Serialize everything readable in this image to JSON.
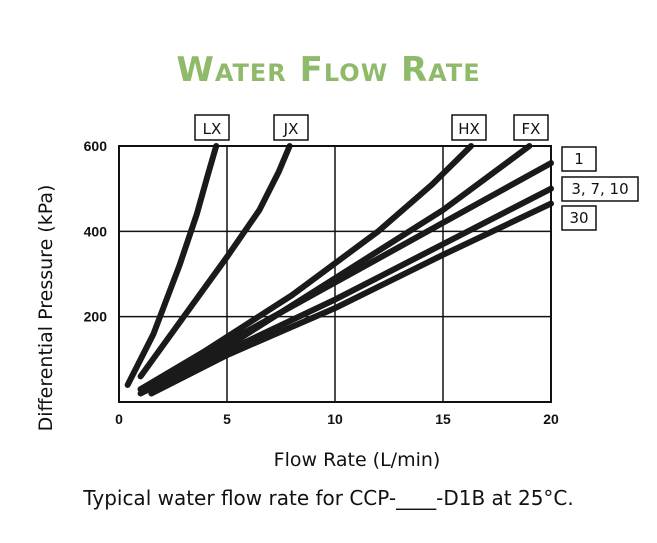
{
  "chart_data": {
    "type": "line",
    "title": "Water Flow Rate",
    "xlabel": "Flow Rate (L/min)",
    "ylabel": "Differential Pressure (kPa)",
    "xlim": [
      0,
      20
    ],
    "ylim": [
      0,
      600
    ],
    "xticks": [
      0,
      5,
      10,
      15,
      20
    ],
    "yticks": [
      200,
      400,
      600
    ],
    "yticks_shown": [
      "200",
      "400",
      "600"
    ],
    "grid": true,
    "series": [
      {
        "name": "LX",
        "x": [
          0.4,
          1.6,
          2.8,
          3.6,
          4.1,
          4.5
        ],
        "y": [
          40,
          160,
          320,
          440,
          530,
          600
        ]
      },
      {
        "name": "JX",
        "x": [
          1.0,
          3.0,
          5.0,
          6.5,
          7.4,
          7.9
        ],
        "y": [
          60,
          200,
          340,
          450,
          540,
          600
        ]
      },
      {
        "name": "HX",
        "x": [
          1.0,
          4.0,
          8.0,
          12.0,
          14.5,
          16.3
        ],
        "y": [
          30,
          120,
          250,
          400,
          510,
          600
        ]
      },
      {
        "name": "FX",
        "x": [
          1.0,
          5.0,
          10.0,
          15.0,
          19.0
        ],
        "y": [
          20,
          130,
          290,
          450,
          600
        ]
      },
      {
        "name": "1",
        "x": [
          1.0,
          5.0,
          10.0,
          15.0,
          20.0
        ],
        "y": [
          30,
          140,
          280,
          420,
          560
        ]
      },
      {
        "name": "3, 7, 10",
        "x": [
          1.2,
          5.0,
          10.0,
          15.0,
          20.0
        ],
        "y": [
          25,
          120,
          240,
          370,
          500
        ]
      },
      {
        "name": "30",
        "x": [
          1.5,
          5.0,
          10.0,
          15.0,
          20.0
        ],
        "y": [
          20,
          110,
          220,
          345,
          465
        ]
      }
    ]
  },
  "labels": {
    "top": [
      "LX",
      "JX",
      "HX",
      "FX"
    ],
    "right": [
      "1",
      "3, 7, 10",
      "30"
    ]
  },
  "caption": "Typical water flow rate for CCP-____-D1B at 25°C."
}
